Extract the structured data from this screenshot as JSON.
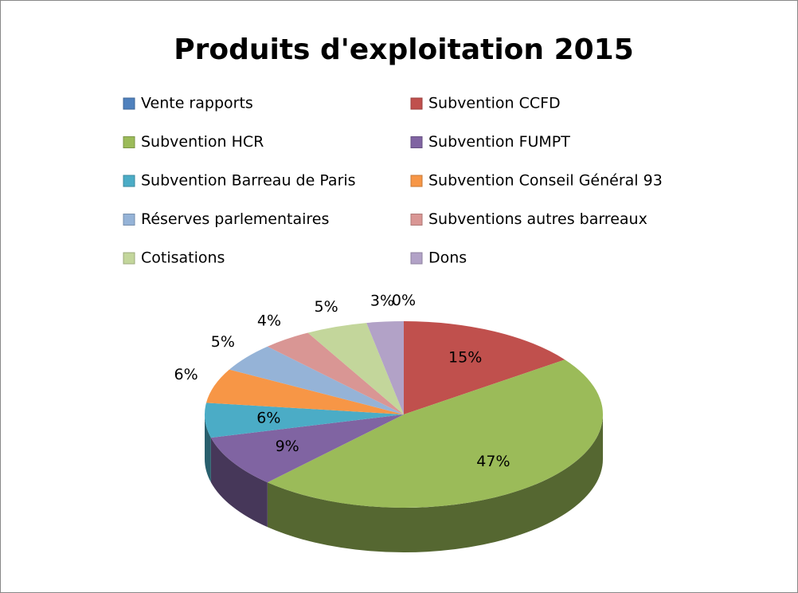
{
  "chart_data": {
    "type": "pie3d",
    "title": "Produits d'exploitation 2015",
    "categories": [
      "Vente rapports",
      "Subvention CCFD",
      "Subvention HCR",
      "Subvention FUMPT",
      "Subvention Barreau de Paris",
      "Subvention Conseil Général 93",
      "Réserves parlementaires",
      "Subventions autres barreaux",
      "Cotisations",
      "Dons"
    ],
    "values": [
      0,
      15,
      47,
      9,
      6,
      6,
      5,
      4,
      5,
      3
    ],
    "value_labels": [
      "0%",
      "15%",
      "47%",
      "9%",
      "6%",
      "6%",
      "5%",
      "4%",
      "5%",
      "3%"
    ],
    "colors": [
      "#4f81bd",
      "#c0504d",
      "#9bbb59",
      "#8064a2",
      "#4bacc6",
      "#f79646",
      "#95b3d7",
      "#d99694",
      "#c3d69b",
      "#b2a2c7"
    ],
    "legend": "top"
  }
}
